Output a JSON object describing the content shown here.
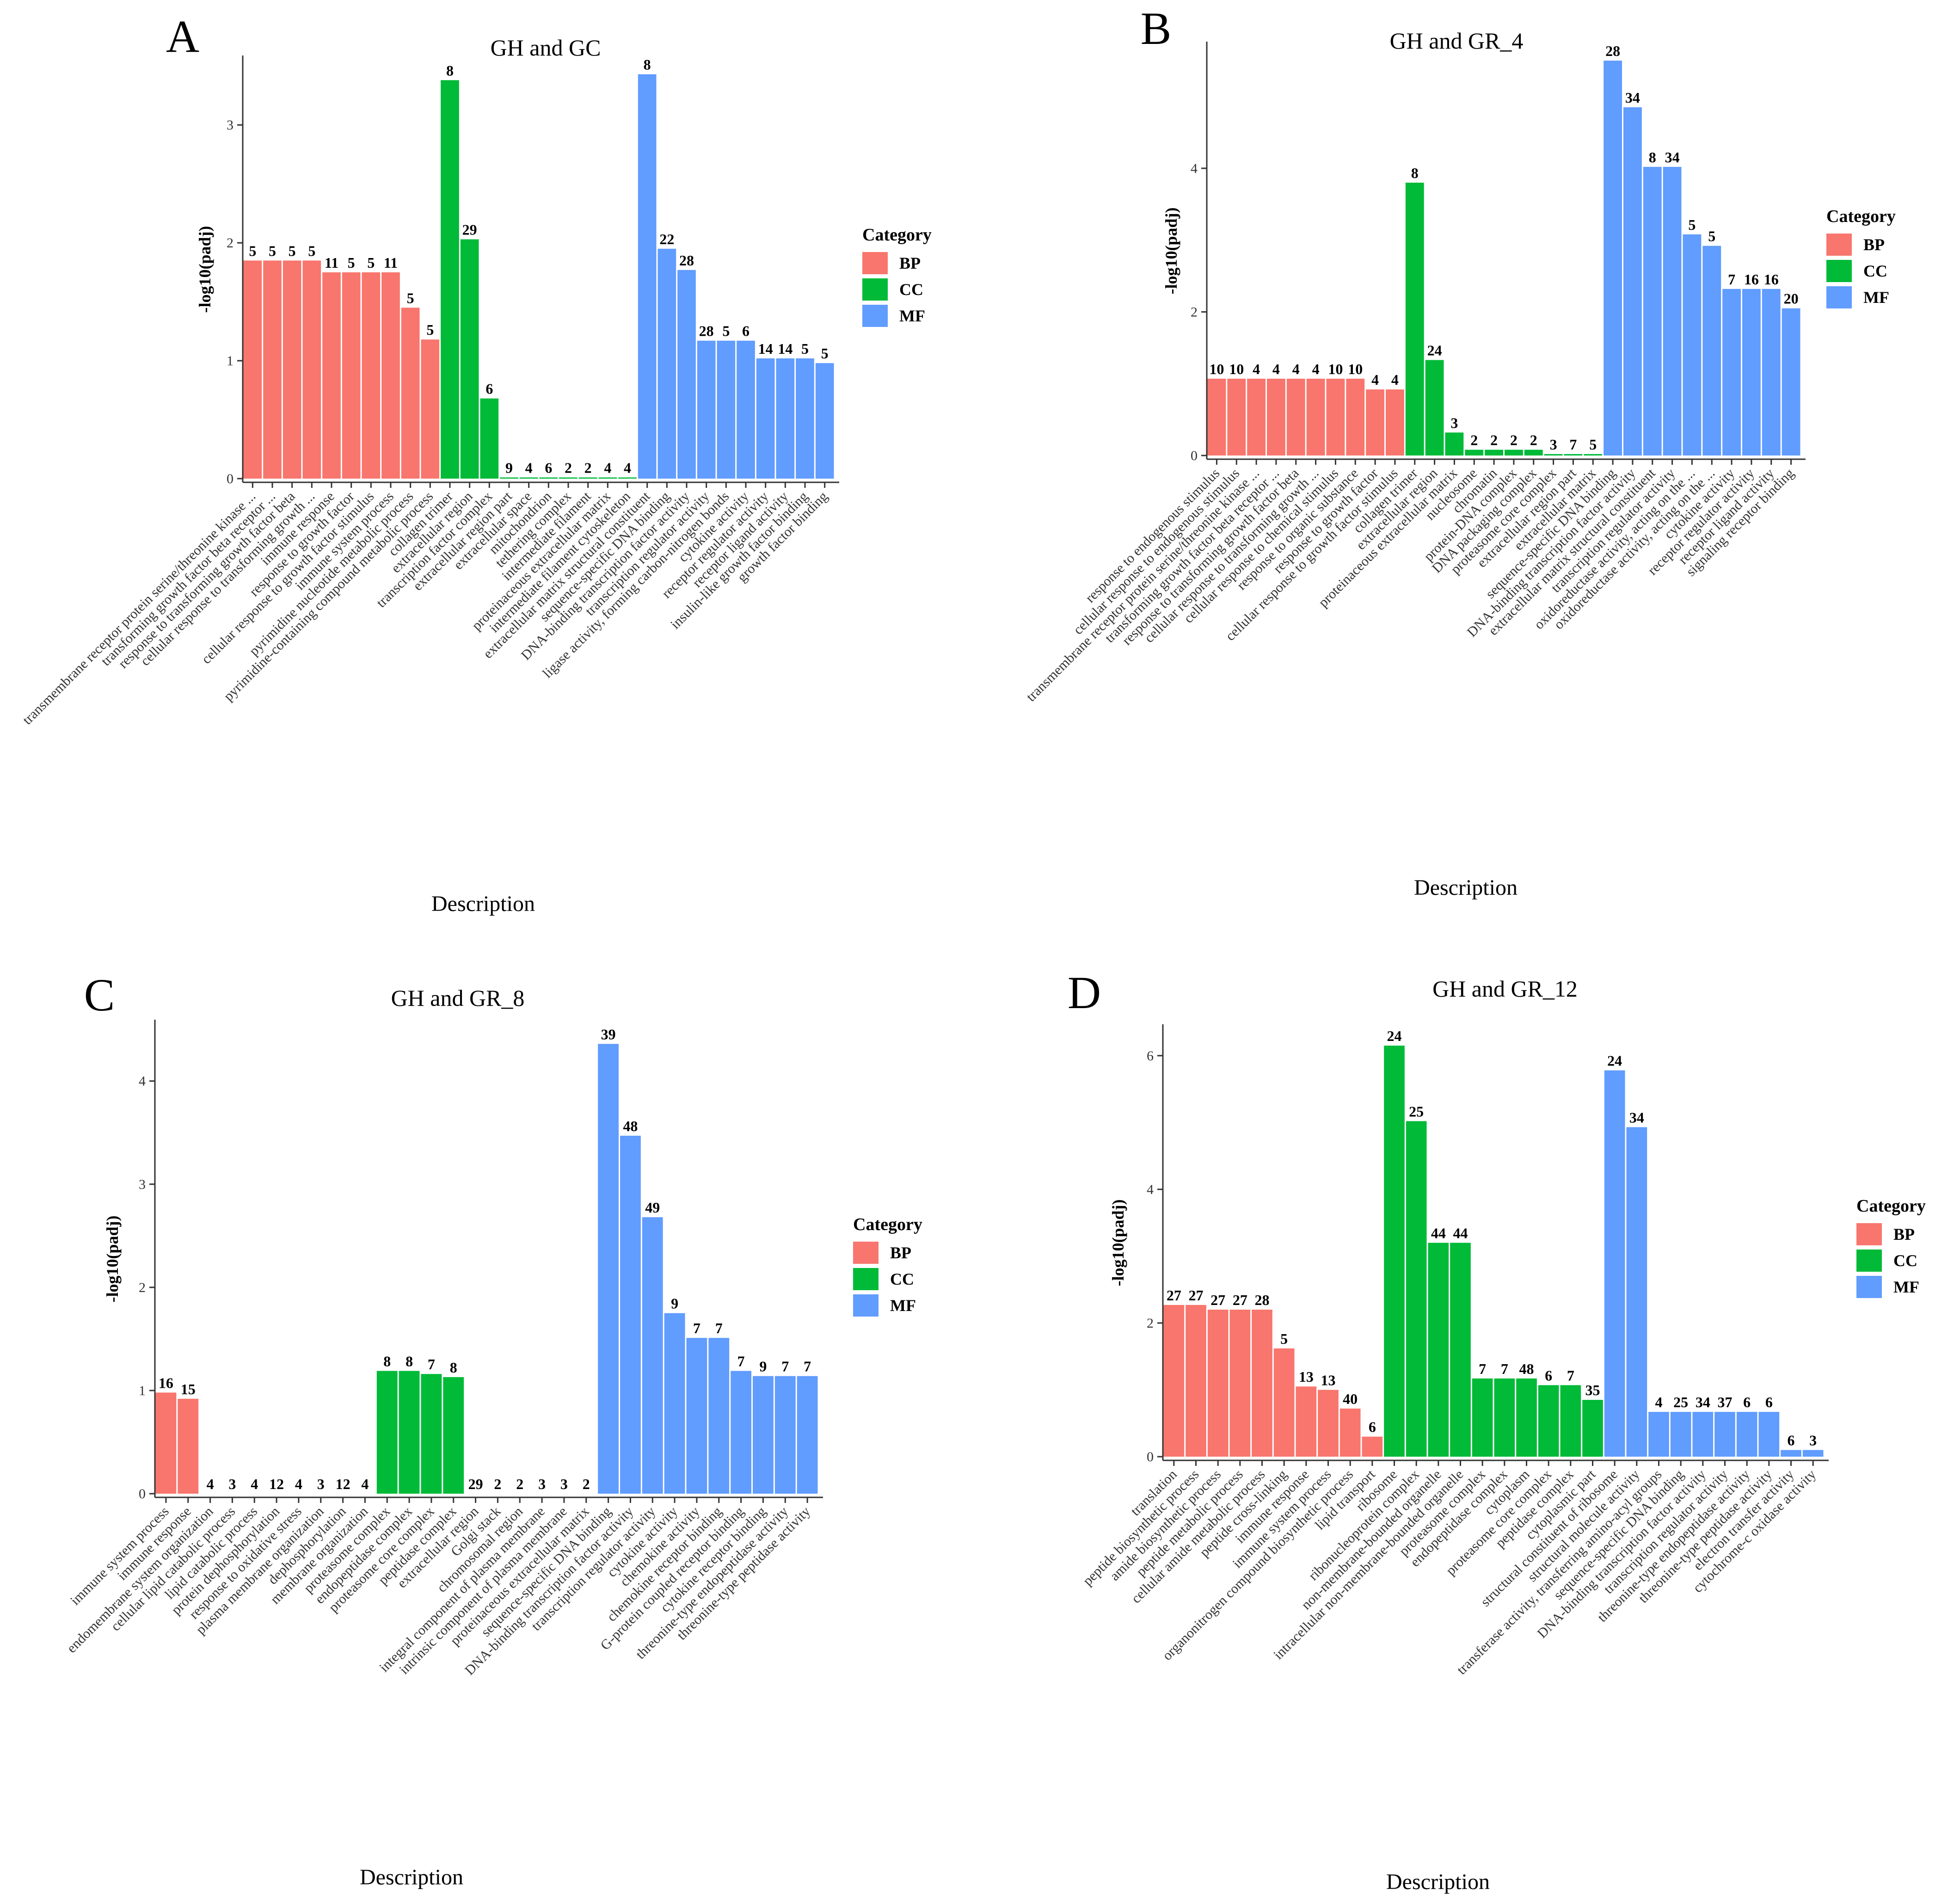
{
  "colors": {
    "BP": "#F8766D",
    "CC": "#00BA38",
    "MF": "#619CFF"
  },
  "legend": {
    "title": "Category",
    "entries": [
      "BP",
      "CC",
      "MF"
    ]
  },
  "chart_data": [
    {
      "panel": "A",
      "type": "bar",
      "title": "GH and GC",
      "xlabel": "Description",
      "ylabel": "-log10(padj)",
      "ylim": [
        0,
        3.55
      ],
      "yticks": [
        0,
        1,
        2,
        3
      ],
      "categories": [
        "transmembrane receptor protein serine/threonine kinase ...",
        "transforming growth factor beta receptor ...",
        "response to transforming growth factor beta",
        "cellular response to transforming growth ...",
        "immune response",
        "response to growth factor",
        "cellular response to growth factor stimulus",
        "immune system process",
        "pyrimidine nucleotide metabolic process",
        "pyrimidine-containing compound metabolic process",
        "collagen trimer",
        "extracellular region",
        "transcription factor complex",
        "extracellular region part",
        "extracellular space",
        "mitochondrion",
        "tethering complex",
        "intermediate filament",
        "proteinaceous extracellular matrix",
        "intermediate filament cytoskeleton",
        "extracellular matrix structural constituent",
        "sequence-specific DNA binding",
        "DNA-binding transcription factor activity",
        "transcription regulator activity",
        "ligase activity, forming carbon-nitrogen bonds",
        "cytokine activity",
        "receptor regulator activity",
        "receptor ligand activity",
        "insulin-like growth factor binding",
        "growth factor binding"
      ],
      "groups": [
        "BP",
        "BP",
        "BP",
        "BP",
        "BP",
        "BP",
        "BP",
        "BP",
        "BP",
        "BP",
        "CC",
        "CC",
        "CC",
        "CC",
        "CC",
        "CC",
        "CC",
        "CC",
        "CC",
        "CC",
        "MF",
        "MF",
        "MF",
        "MF",
        "MF",
        "MF",
        "MF",
        "MF",
        "MF",
        "MF"
      ],
      "values": [
        1.85,
        1.85,
        1.85,
        1.85,
        1.75,
        1.75,
        1.75,
        1.75,
        1.45,
        1.18,
        3.38,
        2.03,
        0.68,
        0.01,
        0.01,
        0.01,
        0.01,
        0.01,
        0.01,
        0.01,
        3.43,
        1.95,
        1.77,
        1.17,
        1.17,
        1.17,
        1.02,
        1.02,
        1.02,
        0.98
      ],
      "labels": [
        "5",
        "5",
        "5",
        "5",
        "11",
        "5",
        "5",
        "11",
        "5",
        "5",
        "8",
        "29",
        "6",
        "9",
        "4",
        "6",
        "2",
        "2",
        "4",
        "4",
        "8",
        "22",
        "28",
        "28",
        "5",
        "6",
        "14",
        "14",
        "5",
        "5"
      ]
    },
    {
      "panel": "B",
      "type": "bar",
      "title": "GH and GR_4",
      "xlabel": "Description",
      "ylabel": "-log10(padj)",
      "ylim": [
        0,
        5.7
      ],
      "yticks": [
        0,
        2,
        4
      ],
      "categories": [
        "response to endogenous stimulus",
        "cellular response to endogenous stimulus",
        "transmembrane receptor protein serine/threonine kinase ...",
        "transforming growth factor beta receptor ...",
        "response to transforming growth factor beta",
        "cellular response to transforming growth ...",
        "cellular response to chemical stimulus",
        "response to organic substance",
        "response to growth factor",
        "cellular response to growth factor stimulus",
        "collagen trimer",
        "extracellular region",
        "proteinaceous extracellular matrix",
        "nucleosome",
        "chromatin",
        "protein-DNA complex",
        "DNA packaging complex",
        "proteasome core complex",
        "extracellular region part",
        "extracellular matrix",
        "sequence-specific DNA binding",
        "DNA-binding transcription factor activity",
        "extracellular matrix structural constituent",
        "transcription regulator activity",
        "oxidoreductase activity, acting on the ...",
        "oxidoreductase activity, acting on the ...",
        "cytokine activity",
        "receptor regulator activity",
        "receptor ligand activity",
        "signaling receptor binding"
      ],
      "groups": [
        "BP",
        "BP",
        "BP",
        "BP",
        "BP",
        "BP",
        "BP",
        "BP",
        "BP",
        "BP",
        "CC",
        "CC",
        "CC",
        "CC",
        "CC",
        "CC",
        "CC",
        "CC",
        "CC",
        "CC",
        "MF",
        "MF",
        "MF",
        "MF",
        "MF",
        "MF",
        "MF",
        "MF",
        "MF",
        "MF"
      ],
      "values": [
        1.07,
        1.07,
        1.07,
        1.07,
        1.07,
        1.07,
        1.07,
        1.07,
        0.92,
        0.92,
        3.8,
        1.33,
        0.32,
        0.08,
        0.08,
        0.08,
        0.08,
        0.02,
        0.02,
        0.02,
        5.5,
        4.85,
        4.02,
        4.02,
        3.08,
        2.92,
        2.32,
        2.32,
        2.32,
        2.05
      ],
      "labels": [
        "10",
        "10",
        "4",
        "4",
        "4",
        "4",
        "10",
        "10",
        "4",
        "4",
        "8",
        "24",
        "3",
        "2",
        "2",
        "2",
        "2",
        "3",
        "7",
        "5",
        "28",
        "34",
        "8",
        "34",
        "5",
        "5",
        "7",
        "16",
        "16",
        "20"
      ]
    },
    {
      "panel": "C",
      "type": "bar",
      "title": "GH and GR_8",
      "xlabel": "Description",
      "ylabel": "-log10(padj)",
      "ylim": [
        0,
        4.55
      ],
      "yticks": [
        0,
        1,
        2,
        3,
        4
      ],
      "categories": [
        "immune system process",
        "immune response",
        "endomembrane system organization",
        "cellular lipid catabolic process",
        "lipid catabolic process",
        "protein dephosphorylation",
        "response to oxidative stress",
        "plasma membrane organization",
        "dephosphorylation",
        "membrane organization",
        "proteasome complex",
        "endopeptidase complex",
        "proteasome core complex",
        "peptidase complex",
        "extracellular region",
        "Golgi stack",
        "chromosomal region",
        "integral component of plasma membrane",
        "intrinsic component of plasma membrane",
        "proteinaceous extracellular matrix",
        "sequence-specific DNA binding",
        "DNA-binding transcription factor activity",
        "transcription regulator activity",
        "cytokine activity",
        "chemokine activity",
        "chemokine receptor binding",
        "G-protein coupled receptor binding",
        "cytokine receptor binding",
        "threonine-type endopeptidase activity",
        "threonine-type peptidase activity"
      ],
      "groups": [
        "BP",
        "BP",
        "BP",
        "BP",
        "BP",
        "BP",
        "BP",
        "BP",
        "BP",
        "BP",
        "CC",
        "CC",
        "CC",
        "CC",
        "CC",
        "CC",
        "CC",
        "CC",
        "CC",
        "CC",
        "MF",
        "MF",
        "MF",
        "MF",
        "MF",
        "MF",
        "MF",
        "MF",
        "MF",
        "MF"
      ],
      "values": [
        0.98,
        0.92,
        0.0,
        0.0,
        0.0,
        0.0,
        0.0,
        0.0,
        0.0,
        0.0,
        1.19,
        1.19,
        1.16,
        1.13,
        0.0,
        0.0,
        0.0,
        0.0,
        0.0,
        0.0,
        4.36,
        3.47,
        2.68,
        1.75,
        1.51,
        1.51,
        1.19,
        1.14,
        1.14,
        1.14
      ],
      "labels": [
        "16",
        "15",
        "4",
        "3",
        "4",
        "12",
        "4",
        "3",
        "12",
        "4",
        "8",
        "8",
        "7",
        "8",
        "29",
        "2",
        "2",
        "3",
        "3",
        "2",
        "39",
        "48",
        "49",
        "9",
        "7",
        "7",
        "7",
        "9",
        "7",
        "7"
      ]
    },
    {
      "panel": "D",
      "type": "bar",
      "title": "GH and GR_12",
      "xlabel": "Description",
      "ylabel": "-log10(padj)",
      "ylim": [
        0,
        6.4
      ],
      "yticks": [
        0,
        2,
        4,
        6
      ],
      "categories": [
        "translation",
        "peptide biosynthetic process",
        "amide biosynthetic process",
        "peptide metabolic process",
        "cellular amide metabolic process",
        "peptide cross-linking",
        "immune response",
        "immune system process",
        "organonitrogen compound biosynthetic process",
        "lipid transport",
        "ribosome",
        "ribonucleoprotein complex",
        "non-membrane-bounded organelle",
        "intracellular non-membrane-bounded organelle",
        "proteasome complex",
        "endopeptidase complex",
        "cytoplasm",
        "proteasome core complex",
        "peptidase complex",
        "cytoplasmic part",
        "structural constituent of ribosome",
        "structural molecule activity",
        "transferase activity, transferring amino-acyl groups",
        "sequence-specific DNA binding",
        "DNA-binding transcription factor activity",
        "transcription regulator activity",
        "threonine-type endopeptidase activity",
        "threonine-type peptidase activity",
        "electron transfer activity",
        "cytochrome-c oxidase activity"
      ],
      "groups": [
        "BP",
        "BP",
        "BP",
        "BP",
        "BP",
        "BP",
        "BP",
        "BP",
        "BP",
        "BP",
        "CC",
        "CC",
        "CC",
        "CC",
        "CC",
        "CC",
        "CC",
        "CC",
        "CC",
        "CC",
        "MF",
        "MF",
        "MF",
        "MF",
        "MF",
        "MF",
        "MF",
        "MF",
        "MF",
        "MF"
      ],
      "values": [
        2.27,
        2.27,
        2.2,
        2.2,
        2.2,
        1.62,
        1.05,
        1.0,
        0.72,
        0.3,
        6.15,
        5.02,
        3.2,
        3.2,
        1.17,
        1.17,
        1.17,
        1.07,
        1.07,
        0.85,
        5.78,
        4.93,
        0.67,
        0.67,
        0.67,
        0.67,
        0.67,
        0.67,
        0.1,
        0.1
      ],
      "labels": [
        "27",
        "27",
        "27",
        "27",
        "28",
        "5",
        "13",
        "13",
        "40",
        "6",
        "24",
        "25",
        "44",
        "44",
        "7",
        "7",
        "48",
        "6",
        "7",
        "35",
        "24",
        "34",
        "4",
        "25",
        "34",
        "37",
        "6",
        "6",
        "6",
        "3"
      ]
    }
  ]
}
